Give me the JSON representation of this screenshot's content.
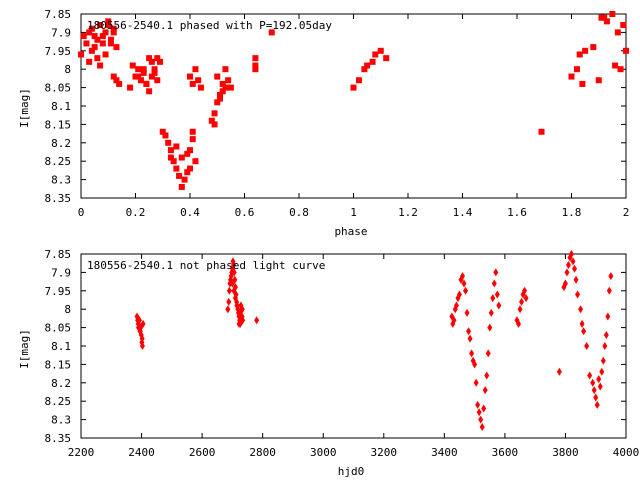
{
  "chart_data": [
    {
      "type": "scatter",
      "title": "180556-2540.1 phased with P=192.05day",
      "xlabel": "phase",
      "ylabel": "I[mag]",
      "xlim": [
        0,
        2
      ],
      "ylim": [
        8.35,
        7.85
      ],
      "y_inverted": true,
      "x_ticks": [
        "0",
        "0.2",
        "0.4",
        "0.6",
        "0.8",
        "1",
        "1.2",
        "1.4",
        "1.6",
        "1.8",
        "2"
      ],
      "y_ticks": [
        "7.85",
        "7.9",
        "7.95",
        "8",
        "8.05",
        "8.1",
        "8.15",
        "8.2",
        "8.25",
        "8.3",
        "8.35"
      ],
      "marker_color": "#ff0000",
      "marker": "filled-square",
      "grid": false,
      "series": [
        {
          "x": [
            0.0,
            0.01,
            0.02,
            0.03,
            0.04,
            0.05,
            0.06,
            0.07,
            0.08,
            0.09,
            0.1,
            0.11,
            0.12,
            0.13,
            0.04,
            0.06,
            0.08,
            0.1,
            0.12,
            0.05,
            0.09,
            0.11,
            0.13,
            0.07,
            0.03,
            0.12,
            0.14,
            0.18,
            0.2,
            0.21,
            0.22,
            0.23,
            0.24,
            0.19,
            0.21,
            0.23,
            0.25,
            0.26,
            0.27,
            0.28,
            0.29,
            0.25,
            0.26,
            0.27,
            0.24,
            0.28,
            0.3,
            0.31,
            0.32,
            0.33,
            0.34,
            0.35,
            0.36,
            0.37,
            0.38,
            0.39,
            0.4,
            0.41,
            0.42,
            0.35,
            0.37,
            0.39,
            0.41,
            0.33,
            0.4,
            0.4,
            0.41,
            0.42,
            0.43,
            0.44,
            0.48,
            0.49,
            0.5,
            0.51,
            0.52,
            0.53,
            0.5,
            0.52,
            0.49,
            0.51,
            0.54,
            0.55,
            0.53,
            0.64,
            0.64,
            0.64,
            0.7,
            1.0,
            1.02,
            1.04,
            1.05,
            1.07,
            1.08,
            1.1,
            1.12,
            1.69,
            1.82,
            1.83,
            1.85,
            1.88,
            1.91,
            1.93,
            1.95,
            1.97,
            1.99,
            1.8,
            1.84,
            1.9,
            1.92,
            1.96,
            1.98,
            2.0
          ],
          "y": [
            7.96,
            7.91,
            7.93,
            7.9,
            7.89,
            7.91,
            7.92,
            7.88,
            7.93,
            7.9,
            7.87,
            7.92,
            7.89,
            7.94,
            7.95,
            7.97,
            7.91,
            7.88,
            7.9,
            7.94,
            7.96,
            7.93,
            8.03,
            7.99,
            7.98,
            8.02,
            8.04,
            8.05,
            8.02,
            8.0,
            8.03,
            8.01,
            8.04,
            7.99,
            8.02,
            8.0,
            7.97,
            7.98,
            8.01,
            8.03,
            7.98,
            8.06,
            8.02,
            8.0,
            8.04,
            7.97,
            8.17,
            8.18,
            8.2,
            8.22,
            8.25,
            8.27,
            8.29,
            8.32,
            8.3,
            8.23,
            8.22,
            8.19,
            8.25,
            8.21,
            8.24,
            8.28,
            8.17,
            8.24,
            8.27,
            8.02,
            8.04,
            8.0,
            8.03,
            8.05,
            8.14,
            8.15,
            8.09,
            8.07,
            8.06,
            8.05,
            8.02,
            8.04,
            8.12,
            8.08,
            8.03,
            8.05,
            8.0,
            7.97,
            7.99,
            8.0,
            7.9,
            8.05,
            8.03,
            8.0,
            7.99,
            7.98,
            7.96,
            7.95,
            7.97,
            8.17,
            8.0,
            7.96,
            7.95,
            7.94,
            7.86,
            7.87,
            7.85,
            7.9,
            7.88,
            8.02,
            8.04,
            8.03,
            7.86,
            7.99,
            8.0,
            7.95
          ]
        }
      ]
    },
    {
      "type": "scatter",
      "title": "180556-2540.1 not phased light curve",
      "xlabel": "hjd0",
      "ylabel": "I[mag]",
      "xlim": [
        2200,
        4000
      ],
      "ylim": [
        8.35,
        7.85
      ],
      "y_inverted": true,
      "x_ticks": [
        "2200",
        "2400",
        "2600",
        "2800",
        "3000",
        "3200",
        "3400",
        "3600",
        "3800",
        "4000"
      ],
      "y_ticks": [
        "7.85",
        "7.9",
        "7.95",
        "8",
        "8.05",
        "8.1",
        "8.15",
        "8.2",
        "8.25",
        "8.3",
        "8.35"
      ],
      "marker_color": "#ff0000",
      "marker": "filled-diamond",
      "grid": false,
      "series": [
        {
          "x": [
            2385,
            2387,
            2389,
            2391,
            2393,
            2395,
            2397,
            2399,
            2401,
            2403,
            2405,
            2390,
            2396,
            2402,
            2685,
            2688,
            2690,
            2692,
            2694,
            2696,
            2698,
            2700,
            2702,
            2704,
            2706,
            2708,
            2710,
            2712,
            2714,
            2716,
            2718,
            2720,
            2722,
            2724,
            2726,
            2728,
            2730,
            2732,
            2734,
            2722,
            2725,
            2728,
            2731,
            2733,
            2700,
            2705,
            2710,
            2715,
            2780,
            3425,
            3428,
            3432,
            3436,
            3440,
            3445,
            3450,
            3455,
            3460,
            3465,
            3470,
            3475,
            3480,
            3485,
            3490,
            3495,
            3500,
            3505,
            3510,
            3515,
            3520,
            3525,
            3530,
            3535,
            3540,
            3545,
            3550,
            3555,
            3560,
            3565,
            3570,
            3575,
            3580,
            3640,
            3645,
            3650,
            3655,
            3660,
            3665,
            3670,
            3780,
            3795,
            3800,
            3805,
            3810,
            3815,
            3820,
            3825,
            3830,
            3835,
            3840,
            3850,
            3855,
            3860,
            3870,
            3880,
            3890,
            3895,
            3900,
            3905,
            3910,
            3915,
            3920,
            3925,
            3930,
            3935,
            3940,
            3945,
            3950
          ],
          "y": [
            8.02,
            8.03,
            8.04,
            8.05,
            8.03,
            8.06,
            8.05,
            8.07,
            8.09,
            8.1,
            8.04,
            8.05,
            8.06,
            8.08,
            8.0,
            7.98,
            7.95,
            7.93,
            7.92,
            7.91,
            7.9,
            7.89,
            7.87,
            7.88,
            7.9,
            7.92,
            7.94,
            7.96,
            7.98,
            7.99,
            8.0,
            8.01,
            8.02,
            8.03,
            8.04,
            7.99,
            8.0,
            8.02,
            8.03,
            8.04,
            8.01,
            8.03,
            8.02,
            8.0,
            7.93,
            7.95,
            7.97,
            7.99,
            8.03,
            8.02,
            8.04,
            8.03,
            8.0,
            7.99,
            7.97,
            7.96,
            7.92,
            7.91,
            7.93,
            7.95,
            8.01,
            8.06,
            8.08,
            8.12,
            8.14,
            8.15,
            8.2,
            8.26,
            8.28,
            8.3,
            8.32,
            8.27,
            8.22,
            8.18,
            8.12,
            8.05,
            8.01,
            7.97,
            7.93,
            7.9,
            7.96,
            7.99,
            8.03,
            8.04,
            8.0,
            7.98,
            7.96,
            7.95,
            7.97,
            8.17,
            7.94,
            7.93,
            7.9,
            7.88,
            7.86,
            7.85,
            7.87,
            7.89,
            7.92,
            7.96,
            8.0,
            8.04,
            8.06,
            8.1,
            8.18,
            8.2,
            8.22,
            8.24,
            8.26,
            8.19,
            8.21,
            8.17,
            8.14,
            8.1,
            8.07,
            8.02,
            7.95,
            7.91
          ]
        }
      ]
    }
  ]
}
